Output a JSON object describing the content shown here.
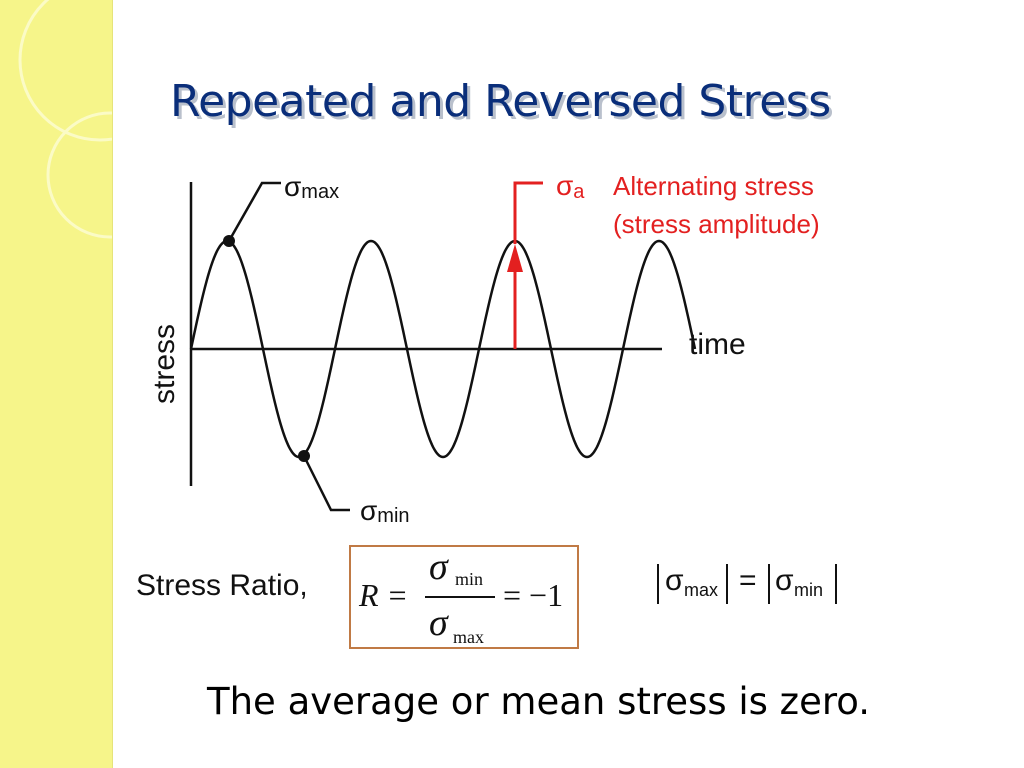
{
  "slide": {
    "title": "Repeated and Reversed Stress",
    "accent_band_color": "#f6f58a",
    "title_color": "#0a2e7a"
  },
  "diagram": {
    "y_axis_label": "stress",
    "x_axis_label": "time",
    "sigma_max_label": {
      "symbol": "σ",
      "sub": "max"
    },
    "sigma_min_label": {
      "symbol": "σ",
      "sub": "min"
    },
    "sigma_a_label": {
      "symbol": "σ",
      "sub": "a"
    },
    "alternating_line1": "Alternating stress",
    "alternating_line2": "(stress amplitude)",
    "wave_cycles": 3.5,
    "highlight_color": "#e32020"
  },
  "formula": {
    "label": "Stress Ratio,",
    "lhs": "R =",
    "num_symbol": "σ",
    "num_sub": "min",
    "den_symbol": "σ",
    "den_sub": "max",
    "rhs": "= −1",
    "box_color": "#c07a45"
  },
  "equality": {
    "left_symbol": "σ",
    "left_sub": "max",
    "eq": "=",
    "right_symbol": "σ",
    "right_sub": "min"
  },
  "footer_text": "The average or mean stress is zero."
}
